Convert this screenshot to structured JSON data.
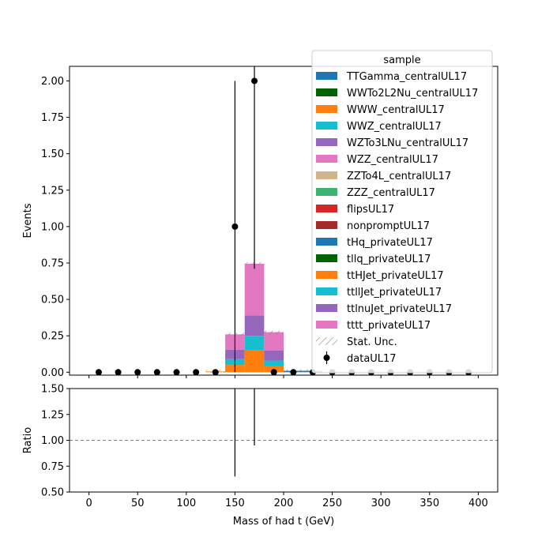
{
  "chart_data": {
    "type": "bar",
    "stacked": true,
    "xlabel": "Mass of had t (GeV)",
    "main_panel": {
      "ylabel": "Events",
      "xlim": [
        -20,
        420
      ],
      "ylim": [
        -0.02,
        2.1
      ],
      "xticks": [
        0,
        50,
        100,
        150,
        200,
        250,
        300,
        350,
        400
      ],
      "yticks": [
        "0.00",
        "0.25",
        "0.50",
        "0.75",
        "1.00",
        "1.25",
        "1.50",
        "1.75",
        "2.00"
      ],
      "ytick_values": [
        0,
        0.25,
        0.5,
        0.75,
        1.0,
        1.25,
        1.5,
        1.75,
        2.0
      ],
      "bin_edges": [
        0,
        20,
        40,
        60,
        80,
        100,
        120,
        140,
        160,
        180,
        200,
        220,
        240,
        260,
        280,
        300,
        320,
        340,
        360,
        380,
        400
      ]
    },
    "ratio_panel": {
      "ylabel": "Ratio",
      "ylim": [
        0.5,
        1.5
      ],
      "yticks": [
        "0.50",
        "0.75",
        "1.00",
        "1.25",
        "1.50"
      ],
      "ytick_values": [
        0.5,
        0.75,
        1.0,
        1.25,
        1.5
      ],
      "reference_line": 1.0,
      "points": [
        {
          "x": 150,
          "y_low": 0.65,
          "y_high": 1.5
        },
        {
          "x": 170,
          "y_low": 0.95,
          "y_high": 1.5
        }
      ]
    },
    "legend": {
      "title": "sample",
      "placement": "top-right"
    },
    "series": [
      {
        "name": "TTGamma_centralUL17",
        "color": "#1f77b4",
        "values": [
          0,
          0,
          0,
          0,
          0,
          0,
          0,
          0,
          0,
          0,
          0.01,
          0.01,
          0,
          0,
          0,
          0,
          0,
          0,
          0,
          0
        ]
      },
      {
        "name": "WWTo2L2Nu_centralUL17",
        "color": "#006400",
        "values": [
          0,
          0,
          0,
          0,
          0,
          0,
          0,
          0,
          0,
          0,
          0,
          0,
          0,
          0,
          0,
          0,
          0,
          0,
          0,
          0
        ]
      },
      {
        "name": "WWW_centralUL17",
        "color": "#ff7f0e",
        "values": [
          0,
          0,
          0,
          0,
          0,
          0,
          0.005,
          0,
          0,
          0,
          0,
          0,
          0,
          0,
          0,
          0,
          0,
          0,
          0,
          0
        ]
      },
      {
        "name": "WWZ_centralUL17",
        "color": "#17becf",
        "values": [
          0,
          0,
          0,
          0,
          0,
          0,
          0,
          0,
          0,
          0,
          0,
          0,
          0,
          0,
          0,
          0,
          0,
          0,
          0,
          0
        ]
      },
      {
        "name": "WZTo3LNu_centralUL17",
        "color": "#9467bd",
        "values": [
          0,
          0,
          0,
          0,
          0,
          0,
          0,
          0,
          0,
          0,
          0,
          0,
          0,
          0,
          0,
          0,
          0,
          0,
          0,
          0
        ]
      },
      {
        "name": "WZZ_centralUL17",
        "color": "#e377c2",
        "values": [
          0,
          0,
          0,
          0,
          0,
          0,
          0,
          0,
          0,
          0,
          0,
          0,
          0,
          0,
          0,
          0,
          0,
          0,
          0,
          0
        ]
      },
      {
        "name": "ZZTo4L_centralUL17",
        "color": "#d2b48c",
        "values": [
          0,
          0,
          0,
          0,
          0,
          0,
          0,
          0,
          0,
          0,
          0,
          0,
          0,
          0,
          0,
          0,
          0,
          0,
          0,
          0
        ]
      },
      {
        "name": "ZZZ_centralUL17",
        "color": "#3cb371",
        "values": [
          0,
          0,
          0,
          0,
          0,
          0,
          0,
          0,
          0,
          0,
          0,
          0,
          0,
          0,
          0,
          0,
          0,
          0,
          0,
          0
        ]
      },
      {
        "name": "flipsUL17",
        "color": "#d62728",
        "values": [
          0,
          0,
          0,
          0,
          0,
          0,
          0,
          0,
          0,
          0,
          0,
          0,
          0,
          0,
          0,
          0,
          0,
          0,
          0,
          0
        ]
      },
      {
        "name": "nonpromptUL17",
        "color": "#a52a2a",
        "values": [
          0,
          0,
          0,
          0,
          0,
          0,
          0,
          0,
          0,
          0,
          0,
          0,
          0,
          0,
          0,
          0,
          0,
          0,
          0,
          0
        ]
      },
      {
        "name": "tHq_privateUL17",
        "color": "#1f77b4",
        "values": [
          0,
          0,
          0,
          0,
          0,
          0,
          0,
          0,
          0,
          0,
          0,
          0,
          0,
          0,
          0,
          0,
          0,
          0,
          0,
          0
        ]
      },
      {
        "name": "tllq_privateUL17",
        "color": "#006400",
        "values": [
          0,
          0,
          0,
          0,
          0,
          0,
          0,
          0,
          0,
          0,
          0,
          0,
          0,
          0,
          0,
          0,
          0,
          0,
          0,
          0
        ]
      },
      {
        "name": "ttHJet_privateUL17",
        "color": "#ff7f0e",
        "values": [
          0,
          0,
          0,
          0,
          0,
          0,
          0,
          0.05,
          0.15,
          0.04,
          0,
          0,
          0,
          0,
          0,
          0,
          0,
          0,
          0,
          0
        ]
      },
      {
        "name": "ttllJet_privateUL17",
        "color": "#17becf",
        "values": [
          0,
          0,
          0,
          0,
          0,
          0,
          0,
          0.04,
          0.1,
          0.04,
          0,
          0,
          0,
          0,
          0,
          0,
          0,
          0,
          0,
          0
        ]
      },
      {
        "name": "ttlnuJet_privateUL17",
        "color": "#9467bd",
        "values": [
          0,
          0,
          0,
          0,
          0,
          0,
          0,
          0.065,
          0.14,
          0.07,
          0,
          0,
          0,
          0,
          0,
          0,
          0,
          0,
          0,
          0
        ]
      },
      {
        "name": "tttt_privateUL17",
        "color": "#e377c2",
        "values": [
          0,
          0,
          0,
          0,
          0,
          0,
          0,
          0.105,
          0.355,
          0.125,
          0,
          0,
          0,
          0,
          0,
          0,
          0,
          0,
          0,
          0
        ]
      }
    ],
    "stat_unc": {
      "name": "Stat. Unc."
    },
    "data": {
      "name": "dataUL17",
      "x": [
        10,
        30,
        50,
        70,
        90,
        110,
        130,
        150,
        170,
        190,
        210,
        230,
        250,
        270,
        290,
        310,
        330,
        350,
        370,
        390
      ],
      "y": [
        0,
        0,
        0,
        0,
        0,
        0,
        0,
        1,
        2,
        0,
        0,
        0,
        0,
        0,
        0,
        0,
        0,
        0,
        0,
        0
      ],
      "err": [
        0,
        0,
        0,
        0,
        0,
        0,
        0,
        1,
        1.29,
        0,
        0,
        0,
        0,
        0,
        0,
        0,
        0,
        0,
        0,
        0
      ]
    }
  }
}
